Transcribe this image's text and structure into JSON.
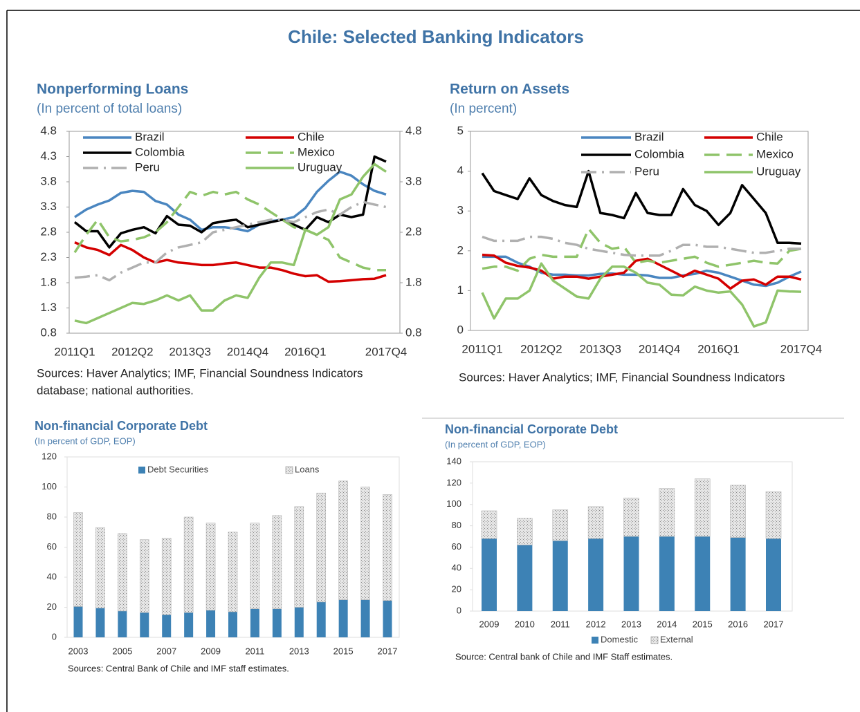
{
  "title": "Chile: Selected Banking Indicators",
  "chart_data": [
    {
      "type": "line",
      "title": "Nonperforming Loans",
      "subtitle": "(In percent of total loans)",
      "categories": [
        "2011Q1",
        null,
        null,
        null,
        null,
        "2012Q2",
        null,
        null,
        null,
        null,
        "2013Q3",
        null,
        null,
        null,
        null,
        "2014Q4",
        null,
        null,
        null,
        null,
        "2016Q1",
        null,
        null,
        null,
        null,
        null,
        null,
        "2017Q4"
      ],
      "ylim": [
        0.8,
        4.8
      ],
      "yticks": [
        0.8,
        1.3,
        1.8,
        2.3,
        2.8,
        3.3,
        3.8,
        4.3,
        4.8
      ],
      "y2lim": [
        0.8,
        4.8
      ],
      "y2ticks": [
        0.8,
        1.8,
        2.8,
        3.8,
        4.8
      ],
      "legend": "top",
      "series": [
        {
          "name": "Brazil",
          "color": "#4a86c0",
          "values": [
            3.1,
            3.25,
            3.35,
            3.43,
            3.58,
            3.62,
            3.6,
            3.42,
            3.35,
            3.15,
            3.05,
            2.85,
            2.9,
            2.9,
            2.87,
            2.82,
            2.95,
            3.02,
            3.05,
            3.1,
            3.28,
            3.6,
            3.82,
            4.0,
            3.92,
            3.75,
            3.62,
            3.55
          ]
        },
        {
          "name": "Chile",
          "color": "#d40000",
          "values": [
            2.6,
            2.5,
            2.45,
            2.35,
            2.55,
            2.45,
            2.3,
            2.2,
            2.25,
            2.2,
            2.18,
            2.15,
            2.15,
            2.18,
            2.2,
            2.15,
            2.1,
            2.1,
            2.05,
            1.98,
            1.93,
            1.95,
            1.82,
            1.83,
            1.85,
            1.87,
            1.88,
            1.95
          ]
        },
        {
          "name": "Colombia",
          "color": "#000000",
          "values": [
            3.0,
            2.82,
            2.82,
            2.5,
            2.78,
            2.85,
            2.9,
            2.78,
            3.12,
            2.95,
            2.93,
            2.8,
            2.98,
            3.02,
            3.05,
            2.9,
            2.95,
            3.0,
            3.05,
            2.95,
            2.85,
            3.1,
            3.0,
            3.15,
            3.1,
            3.15,
            4.3,
            4.2
          ]
        },
        {
          "name": "Mexico",
          "color": "#8fc46a",
          "dash": "dashed",
          "values": [
            2.4,
            2.75,
            3.05,
            2.7,
            2.62,
            2.65,
            2.7,
            2.8,
            3.0,
            3.3,
            3.6,
            3.52,
            3.6,
            3.55,
            3.6,
            3.45,
            3.35,
            3.2,
            3.05,
            2.9,
            2.85,
            2.75,
            2.65,
            2.3,
            2.2,
            2.1,
            2.05,
            2.05
          ]
        },
        {
          "name": "Peru",
          "color": "#b0b0b0",
          "dash": "dashdot",
          "values": [
            1.9,
            1.92,
            1.95,
            1.85,
            2.0,
            2.1,
            2.2,
            2.2,
            2.4,
            2.5,
            2.55,
            2.6,
            2.8,
            2.85,
            2.9,
            2.95,
            3.0,
            3.05,
            3.05,
            3.0,
            3.1,
            3.2,
            3.25,
            3.15,
            3.3,
            3.4,
            3.35,
            3.3
          ]
        },
        {
          "name": "Uruguay",
          "color": "#8fc46a",
          "values": [
            1.05,
            1.0,
            1.1,
            1.2,
            1.3,
            1.4,
            1.38,
            1.45,
            1.55,
            1.45,
            1.55,
            1.25,
            1.25,
            1.45,
            1.55,
            1.5,
            1.9,
            2.2,
            2.2,
            2.15,
            2.85,
            2.75,
            2.9,
            3.45,
            3.55,
            3.9,
            4.15,
            4.0
          ]
        }
      ],
      "sources": [
        "Sources: Haver Analytics; IMF, Financial Soundness Indicators",
        "database; national authorities."
      ]
    },
    {
      "type": "line",
      "title": "Return on Assets",
      "subtitle": "(In percent)",
      "categories": [
        "2011Q1",
        null,
        null,
        null,
        null,
        "2012Q2",
        null,
        null,
        null,
        null,
        "2013Q3",
        null,
        null,
        null,
        null,
        "2014Q4",
        null,
        null,
        null,
        null,
        "2016Q1",
        null,
        null,
        null,
        null,
        null,
        null,
        "2017Q4"
      ],
      "ylim": [
        0,
        5
      ],
      "yticks": [
        0,
        1,
        2,
        3,
        4,
        5
      ],
      "legend": "top",
      "series": [
        {
          "name": "Brazil",
          "color": "#4a86c0",
          "values": [
            1.85,
            1.85,
            1.85,
            1.7,
            1.6,
            1.45,
            1.4,
            1.4,
            1.38,
            1.38,
            1.42,
            1.43,
            1.4,
            1.4,
            1.38,
            1.32,
            1.32,
            1.38,
            1.42,
            1.5,
            1.45,
            1.35,
            1.25,
            1.15,
            1.12,
            1.2,
            1.35,
            1.48
          ]
        },
        {
          "name": "Chile",
          "color": "#d40000",
          "values": [
            1.9,
            1.88,
            1.7,
            1.62,
            1.58,
            1.5,
            1.3,
            1.35,
            1.35,
            1.3,
            1.35,
            1.4,
            1.45,
            1.75,
            1.8,
            1.65,
            1.5,
            1.35,
            1.5,
            1.4,
            1.3,
            1.05,
            1.25,
            1.28,
            1.15,
            1.35,
            1.35,
            1.28
          ]
        },
        {
          "name": "Colombia",
          "color": "#000000",
          "values": [
            3.95,
            3.5,
            3.4,
            3.3,
            3.82,
            3.4,
            3.25,
            3.15,
            3.1,
            4.0,
            2.95,
            2.9,
            2.82,
            3.45,
            2.95,
            2.9,
            2.9,
            3.55,
            3.15,
            3.0,
            2.65,
            2.95,
            3.65,
            3.3,
            2.95,
            2.2,
            2.2,
            2.18
          ]
        },
        {
          "name": "Mexico",
          "color": "#8fc46a",
          "dash": "dashed",
          "values": [
            1.55,
            1.6,
            1.6,
            1.5,
            1.8,
            1.9,
            1.85,
            1.85,
            1.85,
            2.55,
            2.2,
            2.05,
            2.1,
            1.7,
            1.75,
            1.7,
            1.75,
            1.8,
            1.85,
            1.7,
            1.6,
            1.65,
            1.7,
            1.75,
            1.7,
            1.68,
            2.0,
            2.05
          ]
        },
        {
          "name": "Peru",
          "color": "#b0b0b0",
          "dash": "dashdot",
          "values": [
            2.35,
            2.25,
            2.25,
            2.25,
            2.35,
            2.35,
            2.3,
            2.2,
            2.15,
            2.05,
            2.0,
            1.95,
            1.9,
            1.88,
            1.88,
            1.88,
            2.0,
            2.15,
            2.15,
            2.1,
            2.1,
            2.05,
            2.0,
            1.95,
            1.95,
            2.0,
            2.05,
            2.05
          ]
        },
        {
          "name": "Uruguay",
          "color": "#8fc46a",
          "values": [
            0.95,
            0.3,
            0.8,
            0.8,
            1.0,
            1.68,
            1.25,
            1.05,
            0.85,
            0.8,
            1.3,
            1.6,
            1.6,
            1.45,
            1.2,
            1.15,
            0.9,
            0.88,
            1.1,
            1.0,
            0.95,
            0.98,
            0.65,
            0.1,
            0.2,
            1.0,
            0.98,
            0.97
          ]
        }
      ],
      "sources": [
        "Sources: Haver Analytics; IMF, Financial Soundness Indicators"
      ]
    },
    {
      "type": "bar",
      "stacked": true,
      "title": "Non-financial Corporate Debt",
      "subtitle": "(In percent of GDP, EOP)",
      "categories": [
        "2003",
        null,
        "2005",
        null,
        "2007",
        null,
        "2009",
        null,
        "2011",
        null,
        "2013",
        null,
        "2015",
        null,
        "2017"
      ],
      "ylim": [
        0,
        120
      ],
      "yticks": [
        0,
        20,
        40,
        60,
        80,
        100,
        120
      ],
      "legend": "top",
      "series": [
        {
          "name": "Debt Securities",
          "color": "#3d82b5",
          "values": [
            20.5,
            19.5,
            17.5,
            16.5,
            15,
            16.5,
            18,
            17,
            19,
            19,
            20,
            23.5,
            25,
            25,
            24.5
          ]
        },
        {
          "name": "Loans",
          "color": "#9a9a9a",
          "pattern": "hatched",
          "values": [
            62.5,
            53.5,
            51.5,
            48.5,
            51,
            63.5,
            58,
            53,
            57,
            62,
            67,
            72.5,
            79,
            75,
            70.5
          ]
        }
      ],
      "sources": [
        "Sources: Central Bank of Chile and IMF staff estimates."
      ]
    },
    {
      "type": "bar",
      "stacked": true,
      "title": "Non-financial Corporate Debt",
      "subtitle": "(In percent of GDP, EOP)",
      "categories": [
        "2009",
        "2010",
        "2011",
        "2012",
        "2013",
        "2014",
        "2015",
        "2016",
        "2017"
      ],
      "ylim": [
        0,
        140
      ],
      "yticks": [
        0,
        20,
        40,
        60,
        80,
        100,
        120,
        140
      ],
      "legend": "bottom",
      "series": [
        {
          "name": "Domestic",
          "color": "#3d82b5",
          "values": [
            68,
            62,
            66,
            68,
            70,
            70,
            70,
            69,
            68
          ]
        },
        {
          "name": "External",
          "color": "#9a9a9a",
          "pattern": "hatched",
          "values": [
            26,
            25,
            29,
            30,
            36,
            45,
            54,
            49,
            44
          ]
        }
      ],
      "sources": [
        "Source: Central bank of Chile and IMF Staff estimates."
      ]
    }
  ]
}
